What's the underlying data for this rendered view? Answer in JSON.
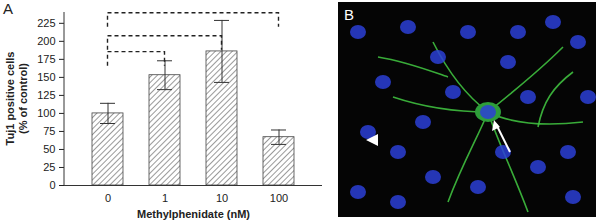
{
  "chart_data": {
    "type": "bar",
    "panel_label": "A",
    "x_label": "Methylphenidate (nM)",
    "y_label": "Tuj1 positive cells\n(% of control)",
    "categories": [
      "0",
      "1",
      "10",
      "100"
    ],
    "values": [
      100,
      153,
      186,
      67
    ],
    "errors": [
      14,
      20,
      43,
      10
    ],
    "color": "#808080",
    "ylim": [
      0,
      240
    ],
    "yticks": [
      0,
      25,
      50,
      75,
      100,
      125,
      150,
      175,
      200,
      225
    ],
    "brackets": [
      {
        "from": "0",
        "to": "1",
        "y": 185
      },
      {
        "from": "0",
        "to": "10",
        "y": 207
      },
      {
        "from": "0",
        "to": "100",
        "y": 239
      }
    ]
  },
  "panel_b": {
    "label": "B"
  }
}
